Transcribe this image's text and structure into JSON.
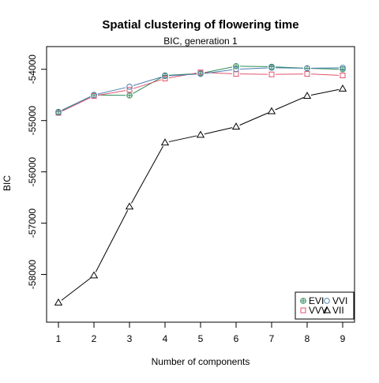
{
  "chart_data": {
    "type": "line",
    "title": "Spatial clustering of flowering time",
    "subtitle": "BIC, generation 1",
    "xlabel": "Number of components",
    "ylabel": "BIC",
    "x": [
      1,
      2,
      3,
      4,
      5,
      6,
      7,
      8,
      9
    ],
    "xlim": [
      1,
      9
    ],
    "ylim": [
      -58700,
      -53850
    ],
    "x_ticks": [
      "1",
      "2",
      "3",
      "4",
      "5",
      "6",
      "7",
      "8",
      "9"
    ],
    "y_ticks": [
      {
        "value": -54000,
        "label": "-54000"
      },
      {
        "value": -55000,
        "label": "-55000"
      },
      {
        "value": -56000,
        "label": "-56000"
      },
      {
        "value": -57000,
        "label": "-57000"
      },
      {
        "value": -58000,
        "label": "-58000"
      }
    ],
    "grid": false,
    "legend_position": "bottom-right",
    "series": [
      {
        "name": "EVI",
        "color": "#2e8b57",
        "marker": "circle-plus",
        "values": [
          -54830,
          -54500,
          -54510,
          -54120,
          -54080,
          -53940,
          -53950,
          -53980,
          -54000
        ]
      },
      {
        "name": "VVV",
        "color": "#df536b",
        "marker": "square",
        "values": [
          -54850,
          -54520,
          -54400,
          -54180,
          -54060,
          -54090,
          -54100,
          -54090,
          -54120
        ]
      },
      {
        "name": "VVI",
        "color": "#4a7fb0",
        "marker": "circle",
        "values": [
          -54840,
          -54500,
          -54340,
          -54130,
          -54090,
          -54000,
          -53970,
          -53980,
          -53970
        ]
      },
      {
        "name": "VII",
        "color": "#000000",
        "marker": "triangle",
        "values": [
          -58550,
          -58020,
          -56680,
          -55430,
          -55280,
          -55120,
          -54820,
          -54520,
          -54380
        ]
      }
    ]
  }
}
